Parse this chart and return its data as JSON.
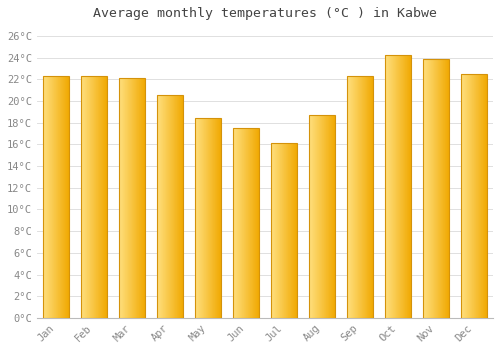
{
  "title": "Average monthly temperatures (°C ) in Kabwe",
  "months": [
    "Jan",
    "Feb",
    "Mar",
    "Apr",
    "May",
    "Jun",
    "Jul",
    "Aug",
    "Sep",
    "Oct",
    "Nov",
    "Dec"
  ],
  "values": [
    22.3,
    22.3,
    22.1,
    20.6,
    18.4,
    17.5,
    16.1,
    18.7,
    22.3,
    24.3,
    23.9,
    22.5
  ],
  "bar_color_top": "#FFD966",
  "bar_color_bottom": "#F0A800",
  "bar_color_left": "#FFE080",
  "bar_edge_color": "#D4920A",
  "background_color": "#FFFFFF",
  "grid_color": "#E0E0E0",
  "text_color": "#888888",
  "title_color": "#444444",
  "ylim": [
    0,
    27
  ],
  "yticks": [
    0,
    2,
    4,
    6,
    8,
    10,
    12,
    14,
    16,
    18,
    20,
    22,
    24,
    26
  ],
  "ytick_labels": [
    "0°C",
    "2°C",
    "4°C",
    "6°C",
    "8°C",
    "10°C",
    "12°C",
    "14°C",
    "16°C",
    "18°C",
    "20°C",
    "22°C",
    "24°C",
    "26°C"
  ]
}
